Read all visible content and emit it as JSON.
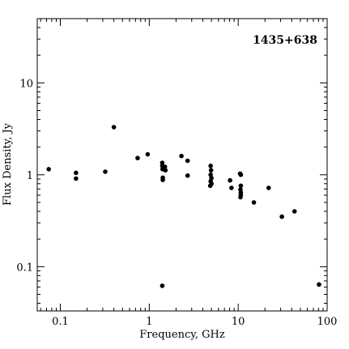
{
  "chart_data": {
    "type": "scatter",
    "title": "",
    "annotation": "1435+638",
    "xlabel": "Frequency, GHz",
    "ylabel": "Flux Density, Jy",
    "xscale": "log",
    "yscale": "log",
    "xlim": [
      0.055,
      100
    ],
    "ylim": [
      0.033,
      50
    ],
    "xticks": [
      {
        "value": 0.1,
        "label": "0.1"
      },
      {
        "value": 1,
        "label": "1"
      },
      {
        "value": 10,
        "label": "10"
      },
      {
        "value": 100,
        "label": "100"
      }
    ],
    "yticks": [
      {
        "value": 0.1,
        "label": "0.1"
      },
      {
        "value": 1,
        "label": "1"
      },
      {
        "value": 10,
        "label": "10"
      }
    ],
    "grid": false,
    "legend": "none",
    "marker_color": "#000000",
    "points": [
      {
        "x": 0.074,
        "y": 1.15
      },
      {
        "x": 0.15,
        "y": 1.05
      },
      {
        "x": 0.15,
        "y": 0.91
      },
      {
        "x": 0.32,
        "y": 1.08
      },
      {
        "x": 0.4,
        "y": 3.3
      },
      {
        "x": 0.74,
        "y": 1.52
      },
      {
        "x": 0.96,
        "y": 1.67
      },
      {
        "x": 1.4,
        "y": 1.35
      },
      {
        "x": 1.4,
        "y": 1.25
      },
      {
        "x": 1.41,
        "y": 1.15
      },
      {
        "x": 1.42,
        "y": 0.93
      },
      {
        "x": 1.42,
        "y": 0.88
      },
      {
        "x": 1.5,
        "y": 1.22
      },
      {
        "x": 1.52,
        "y": 1.12
      },
      {
        "x": 1.4,
        "y": 0.062
      },
      {
        "x": 2.3,
        "y": 1.6
      },
      {
        "x": 2.7,
        "y": 1.42
      },
      {
        "x": 2.7,
        "y": 0.98
      },
      {
        "x": 4.9,
        "y": 1.25
      },
      {
        "x": 4.95,
        "y": 1.12
      },
      {
        "x": 4.9,
        "y": 1.0
      },
      {
        "x": 5.0,
        "y": 0.92
      },
      {
        "x": 4.9,
        "y": 0.85
      },
      {
        "x": 5.0,
        "y": 0.8
      },
      {
        "x": 4.85,
        "y": 0.76
      },
      {
        "x": 8.1,
        "y": 0.87
      },
      {
        "x": 8.4,
        "y": 0.72
      },
      {
        "x": 10.5,
        "y": 1.03
      },
      {
        "x": 10.7,
        "y": 1.0
      },
      {
        "x": 10.7,
        "y": 0.76
      },
      {
        "x": 10.6,
        "y": 0.69
      },
      {
        "x": 10.7,
        "y": 0.64
      },
      {
        "x": 10.7,
        "y": 0.6
      },
      {
        "x": 10.6,
        "y": 0.57
      },
      {
        "x": 15.0,
        "y": 0.5
      },
      {
        "x": 22.0,
        "y": 0.72
      },
      {
        "x": 31.0,
        "y": 0.35
      },
      {
        "x": 43.0,
        "y": 0.4
      },
      {
        "x": 81.0,
        "y": 0.064
      }
    ]
  }
}
